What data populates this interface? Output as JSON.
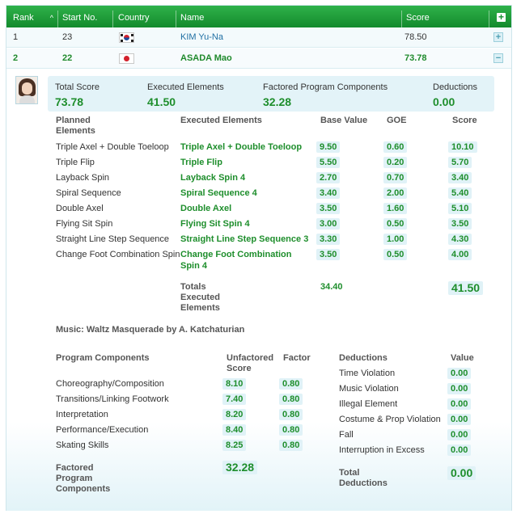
{
  "header": {
    "rank": "Rank",
    "start_no": "Start No.",
    "country": "Country",
    "name": "Name",
    "score": "Score",
    "expand_all_label": "+"
  },
  "rows": [
    {
      "rank": "1",
      "start_no": "23",
      "flag": "korea-flag-icon",
      "name": "KIM Yu-Na",
      "score": "78.50",
      "toggle": "+"
    },
    {
      "rank": "2",
      "start_no": "22",
      "flag": "japan-flag-icon",
      "name": "ASADA Mao",
      "score": "73.78",
      "toggle": "−"
    }
  ],
  "summary": {
    "total_score_label": "Total Score",
    "total_score": "73.78",
    "executed_label": "Executed Elements",
    "executed": "41.50",
    "pcs_label": "Factored Program Components",
    "pcs": "32.28",
    "deductions_label": "Deductions",
    "deductions": "0.00"
  },
  "elements_table": {
    "headers": {
      "planned": "Planned Elements",
      "executed": "Executed Elements",
      "base": "Base Value",
      "goe": "GOE",
      "score": "Score"
    },
    "rows": [
      {
        "planned": "Triple Axel + Double Toeloop",
        "executed": "Triple Axel + Double Toeloop",
        "base": "9.50",
        "goe": "0.60",
        "score": "10.10"
      },
      {
        "planned": "Triple Flip",
        "executed": "Triple Flip",
        "base": "5.50",
        "goe": "0.20",
        "score": "5.70"
      },
      {
        "planned": "Layback Spin",
        "executed": "Layback Spin 4",
        "base": "2.70",
        "goe": "0.70",
        "score": "3.40"
      },
      {
        "planned": "Spiral Sequence",
        "executed": "Spiral Sequence 4",
        "base": "3.40",
        "goe": "2.00",
        "score": "5.40"
      },
      {
        "planned": "Double Axel",
        "executed": "Double Axel",
        "base": "3.50",
        "goe": "1.60",
        "score": "5.10"
      },
      {
        "planned": "Flying Sit Spin",
        "executed": "Flying Sit Spin 4",
        "base": "3.00",
        "goe": "0.50",
        "score": "3.50"
      },
      {
        "planned": "Straight Line Step Sequence",
        "executed": "Straight Line Step Sequence 3",
        "base": "3.30",
        "goe": "1.00",
        "score": "4.30"
      },
      {
        "planned": "Change Foot Combination Spin",
        "executed": "Change Foot Combination Spin 4",
        "base": "3.50",
        "goe": "0.50",
        "score": "4.00"
      }
    ],
    "totals_label": "Totals Executed Elements",
    "totals_base": "34.40",
    "totals_score": "41.50"
  },
  "music": "Music: Waltz Masquerade by A. Katchaturian",
  "components": {
    "headers": {
      "name": "Program Components",
      "unfactored": "Unfactored Score",
      "factor": "Factor"
    },
    "rows": [
      {
        "name": "Choreography/Composition",
        "score": "8.10",
        "factor": "0.80"
      },
      {
        "name": "Transitions/Linking Footwork",
        "score": "7.40",
        "factor": "0.80"
      },
      {
        "name": "Interpretation",
        "score": "8.20",
        "factor": "0.80"
      },
      {
        "name": "Performance/Execution",
        "score": "8.40",
        "factor": "0.80"
      },
      {
        "name": "Skating Skills",
        "score": "8.25",
        "factor": "0.80"
      }
    ],
    "total_label": "Factored Program Components",
    "total": "32.28"
  },
  "deductions": {
    "headers": {
      "name": "Deductions",
      "value": "Value"
    },
    "rows": [
      {
        "name": "Time Violation",
        "value": "0.00"
      },
      {
        "name": "Music Violation",
        "value": "0.00"
      },
      {
        "name": "Illegal Element",
        "value": "0.00"
      },
      {
        "name": "Costume & Prop Violation",
        "value": "0.00"
      },
      {
        "name": "Fall",
        "value": "0.00"
      },
      {
        "name": "Interruption in Excess",
        "value": "0.00"
      }
    ],
    "total_label": "Total Deductions",
    "total": "0.00"
  },
  "colors": {
    "header_green": "#138a2c",
    "value_green": "#1e8e2c",
    "pill_bg": "#e0f2f7",
    "link_blue": "#1f6fa3"
  }
}
